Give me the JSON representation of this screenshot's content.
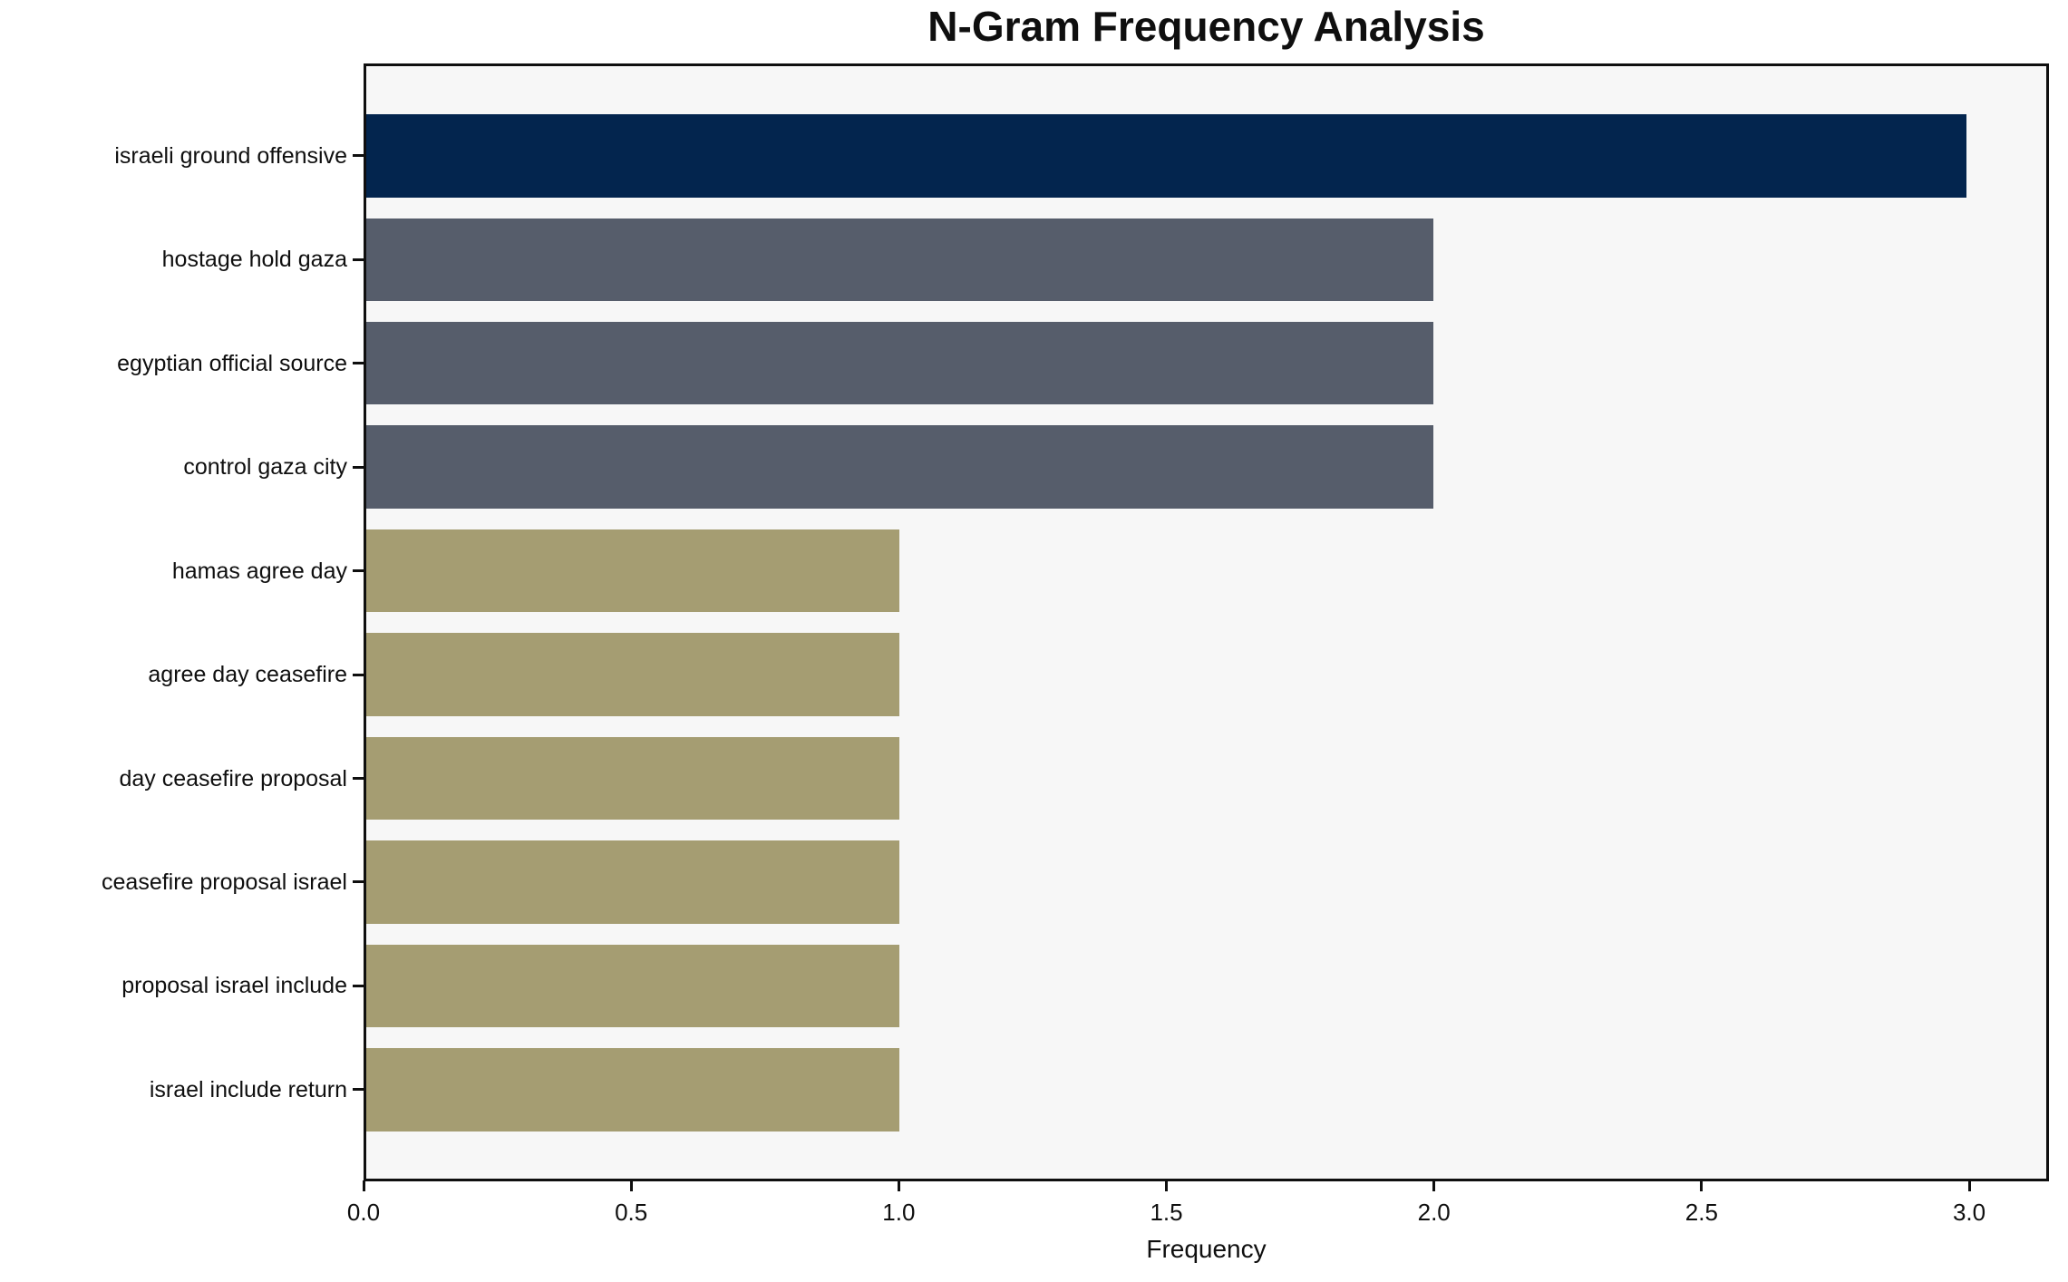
{
  "title": "N-Gram Frequency Analysis",
  "chart_data": {
    "type": "bar",
    "orientation": "horizontal",
    "title": "N-Gram Frequency Analysis",
    "xlabel": "Frequency",
    "ylabel": "",
    "categories": [
      "israeli ground offensive",
      "hostage hold gaza",
      "egyptian official source",
      "control gaza city",
      "hamas agree day",
      "agree day ceasefire",
      "day ceasefire proposal",
      "ceasefire proposal israel",
      "proposal israel include",
      "israel include return"
    ],
    "values": [
      3,
      2,
      2,
      2,
      1,
      1,
      1,
      1,
      1,
      1
    ],
    "bar_colors": [
      "#03254e",
      "#565d6b",
      "#565d6b",
      "#565d6b",
      "#a59d72",
      "#a59d72",
      "#a59d72",
      "#a59d72",
      "#a59d72",
      "#a59d72"
    ],
    "color_legend": {
      "frequency_3": "#03254e",
      "frequency_2": "#565d6b",
      "frequency_1": "#a59d72"
    },
    "xlim": [
      0,
      3.149
    ],
    "xticks": [
      0.0,
      0.5,
      1.0,
      1.5,
      2.0,
      2.5,
      3.0
    ],
    "xtick_labels": [
      "0.0",
      "0.5",
      "1.0",
      "1.5",
      "2.0",
      "2.5",
      "3.0"
    ],
    "grid": false,
    "legend_position": "none",
    "plot_background": "#f7f7f7",
    "figure_background": "#ffffff",
    "axis_color": "#0f0f0f"
  }
}
